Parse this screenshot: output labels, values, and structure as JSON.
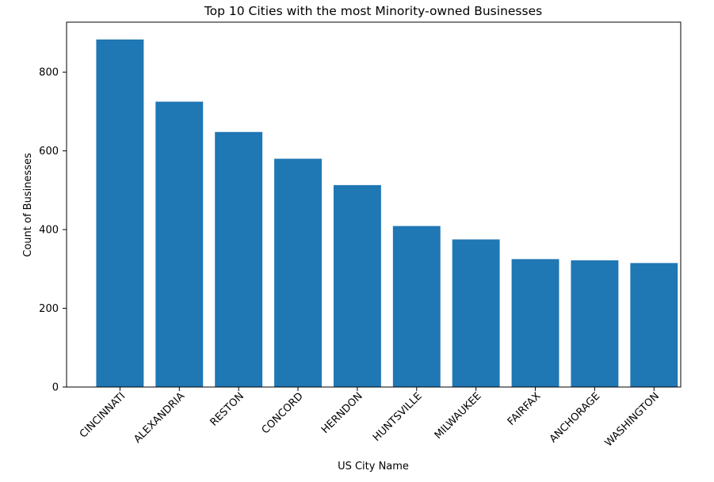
{
  "chart_data": {
    "type": "bar",
    "title": "Top 10 Cities with the most Minority-owned Businesses",
    "xlabel": "US City Name",
    "ylabel": "Count of Businesses",
    "categories": [
      "CINCINNATI",
      "ALEXANDRIA",
      "RESTON",
      "CONCORD",
      "HERNDON",
      "HUNTSVILLE",
      "MILWAUKEE",
      "FAIRFAX",
      "ANCHORAGE",
      "WASHINGTON"
    ],
    "values": [
      883,
      725,
      648,
      580,
      513,
      409,
      375,
      325,
      322,
      315
    ],
    "ylim": [
      0,
      927
    ],
    "yticks": [
      0,
      200,
      400,
      600,
      800
    ],
    "bar_color": "#1f77b4",
    "grid": false,
    "legend": "none"
  }
}
